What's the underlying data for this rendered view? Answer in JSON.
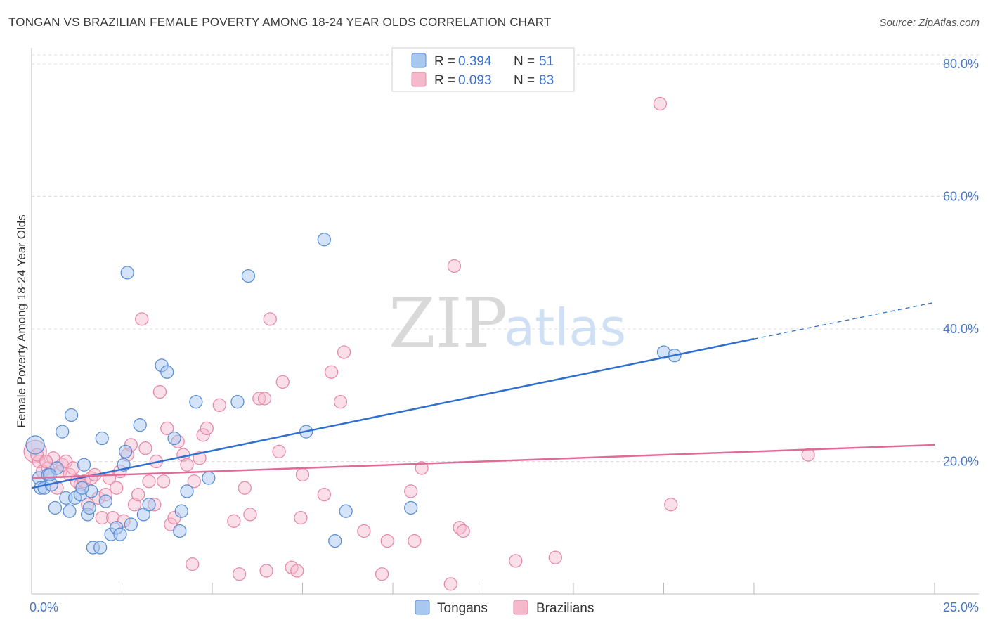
{
  "title": "TONGAN VS BRAZILIAN FEMALE POVERTY AMONG 18-24 YEAR OLDS CORRELATION CHART",
  "source": "Source: ZipAtlas.com",
  "watermark": {
    "zip": "ZIP",
    "atlas": "atlas"
  },
  "colors": {
    "tongans_fill": "#a9c8ef",
    "tongans_stroke": "#5b8fd6",
    "tongans_line": "#2f6fd0",
    "brazilians_fill": "#f6b8cb",
    "brazilians_stroke": "#e68aa8",
    "brazilians_line": "#e06b97",
    "axis_text": "#4a78c2",
    "grid": "#dedede"
  },
  "legend": {
    "rows": [
      {
        "r_label": "R =",
        "r_value": "0.394",
        "n_label": "N =",
        "n_value": "51"
      },
      {
        "r_label": "R =",
        "r_value": "0.093",
        "n_label": "N =",
        "n_value": "83"
      }
    ]
  },
  "bottom_legend": [
    "Tongans",
    "Brazilians"
  ],
  "chart_data": {
    "type": "scatter",
    "xlabel": "",
    "ylabel": "Female Poverty Among 18-24 Year Olds",
    "xlim": [
      0,
      25
    ],
    "ylim": [
      0,
      80
    ],
    "x_tick_labels": [
      "0.0%",
      "25.0%"
    ],
    "y_ticks": [
      20,
      40,
      60,
      80
    ],
    "y_tick_labels": [
      "20.0%",
      "40.0%",
      "60.0%",
      "80.0%"
    ],
    "grid": true,
    "legend_position": "top-center",
    "series": [
      {
        "name": "Tongans",
        "trend": {
          "x0": 0,
          "y0": 16.0,
          "x1": 20,
          "y1": 38.5,
          "dashed_to_x": 25,
          "dashed_to_y": 44.0
        },
        "points": [
          [
            0.1,
            22.5
          ],
          [
            0.2,
            17.5
          ],
          [
            0.25,
            16.0
          ],
          [
            0.35,
            16.0
          ],
          [
            0.45,
            18.0
          ],
          [
            0.55,
            16.5
          ],
          [
            0.7,
            19.0
          ],
          [
            0.65,
            13.0
          ],
          [
            0.85,
            24.5
          ],
          [
            0.95,
            14.5
          ],
          [
            1.05,
            12.5
          ],
          [
            1.1,
            27.0
          ],
          [
            1.2,
            14.5
          ],
          [
            1.35,
            15.0
          ],
          [
            1.45,
            19.5
          ],
          [
            1.55,
            12.0
          ],
          [
            1.6,
            13.0
          ],
          [
            1.65,
            15.5
          ],
          [
            1.7,
            7.0
          ],
          [
            1.9,
            7.0
          ],
          [
            1.95,
            23.5
          ],
          [
            2.05,
            14.0
          ],
          [
            2.2,
            9.0
          ],
          [
            2.35,
            10.0
          ],
          [
            2.45,
            9.0
          ],
          [
            2.55,
            19.5
          ],
          [
            2.6,
            21.5
          ],
          [
            2.65,
            48.5
          ],
          [
            2.75,
            10.5
          ],
          [
            3.0,
            25.5
          ],
          [
            3.1,
            12.0
          ],
          [
            3.25,
            13.5
          ],
          [
            3.6,
            34.5
          ],
          [
            3.75,
            33.5
          ],
          [
            3.95,
            23.5
          ],
          [
            4.1,
            9.5
          ],
          [
            4.15,
            12.5
          ],
          [
            4.3,
            15.5
          ],
          [
            4.55,
            29.0
          ],
          [
            4.9,
            17.5
          ],
          [
            5.7,
            29.0
          ],
          [
            6.0,
            48.0
          ],
          [
            7.6,
            24.5
          ],
          [
            8.1,
            53.5
          ],
          [
            8.4,
            8.0
          ],
          [
            8.7,
            12.5
          ],
          [
            10.5,
            13.0
          ],
          [
            17.5,
            36.5
          ],
          [
            17.8,
            36.0
          ],
          [
            0.5,
            18.0
          ],
          [
            1.4,
            16.0
          ]
        ]
      },
      {
        "name": "Brazilians",
        "trend": {
          "x0": 0,
          "y0": 17.5,
          "x1": 25,
          "y1": 22.5
        },
        "points": [
          [
            0.1,
            21.5
          ],
          [
            0.2,
            20.0
          ],
          [
            0.3,
            18.5
          ],
          [
            0.45,
            19.0
          ],
          [
            0.6,
            20.5
          ],
          [
            0.7,
            16.0
          ],
          [
            0.8,
            18.5
          ],
          [
            0.85,
            19.5
          ],
          [
            0.95,
            20.0
          ],
          [
            1.05,
            18.0
          ],
          [
            1.15,
            19.0
          ],
          [
            1.25,
            17.0
          ],
          [
            1.35,
            16.5
          ],
          [
            1.45,
            17.0
          ],
          [
            1.55,
            13.5
          ],
          [
            1.65,
            17.5
          ],
          [
            1.75,
            18.0
          ],
          [
            1.85,
            14.5
          ],
          [
            1.95,
            11.5
          ],
          [
            2.05,
            15.0
          ],
          [
            2.15,
            17.5
          ],
          [
            2.25,
            11.5
          ],
          [
            2.35,
            16.0
          ],
          [
            2.45,
            18.5
          ],
          [
            2.55,
            11.0
          ],
          [
            2.65,
            21.0
          ],
          [
            2.75,
            22.5
          ],
          [
            2.85,
            13.5
          ],
          [
            2.95,
            15.0
          ],
          [
            3.05,
            41.5
          ],
          [
            3.15,
            22.0
          ],
          [
            3.25,
            17.0
          ],
          [
            3.4,
            13.5
          ],
          [
            3.45,
            20.0
          ],
          [
            3.55,
            30.5
          ],
          [
            3.65,
            17.0
          ],
          [
            3.75,
            25.0
          ],
          [
            3.85,
            10.5
          ],
          [
            3.95,
            11.5
          ],
          [
            4.05,
            23.0
          ],
          [
            4.2,
            21.0
          ],
          [
            4.3,
            19.5
          ],
          [
            4.45,
            4.5
          ],
          [
            4.5,
            17.0
          ],
          [
            4.65,
            20.5
          ],
          [
            4.75,
            24.0
          ],
          [
            4.85,
            25.0
          ],
          [
            5.2,
            28.5
          ],
          [
            5.6,
            11.0
          ],
          [
            5.75,
            3.0
          ],
          [
            5.9,
            16.0
          ],
          [
            6.05,
            12.0
          ],
          [
            6.3,
            29.5
          ],
          [
            6.45,
            29.5
          ],
          [
            6.5,
            3.5
          ],
          [
            6.6,
            41.5
          ],
          [
            6.85,
            21.5
          ],
          [
            6.95,
            32.0
          ],
          [
            7.2,
            4.0
          ],
          [
            7.35,
            3.5
          ],
          [
            7.45,
            11.5
          ],
          [
            7.5,
            18.0
          ],
          [
            8.1,
            15.0
          ],
          [
            8.3,
            33.5
          ],
          [
            8.55,
            29.0
          ],
          [
            8.65,
            36.5
          ],
          [
            9.2,
            9.5
          ],
          [
            9.7,
            3.0
          ],
          [
            9.85,
            8.0
          ],
          [
            10.5,
            15.5
          ],
          [
            10.6,
            8.0
          ],
          [
            10.8,
            19.0
          ],
          [
            11.6,
            1.5
          ],
          [
            11.7,
            49.5
          ],
          [
            11.85,
            10.0
          ],
          [
            11.95,
            9.5
          ],
          [
            13.4,
            5.0
          ],
          [
            14.5,
            5.5
          ],
          [
            17.4,
            74.0
          ],
          [
            17.7,
            13.5
          ],
          [
            21.5,
            21.0
          ],
          [
            0.15,
            21.0
          ],
          [
            0.4,
            20.0
          ]
        ]
      }
    ]
  }
}
